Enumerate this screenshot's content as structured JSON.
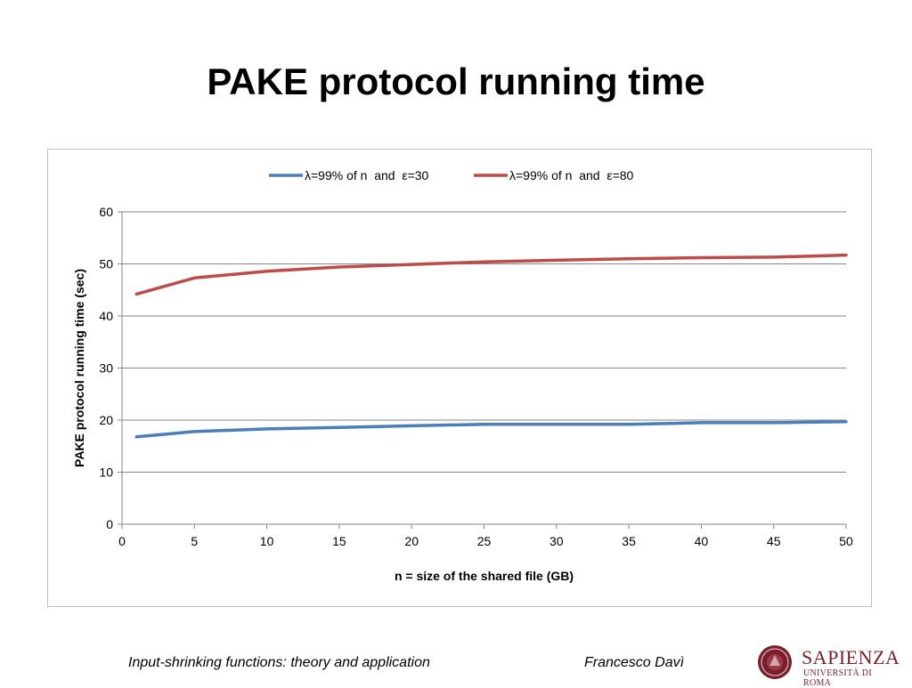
{
  "slide": {
    "title": "PAKE protocol running time",
    "footer_left": "Input-shrinking functions: theory and application",
    "footer_right": "Francesco Davì",
    "logo_name": "SAPIENZA",
    "logo_sub": "UNIVERSITÀ DI ROMA",
    "logo_color": "#7a1f2b"
  },
  "chart_data": {
    "type": "line",
    "title": "",
    "xlabel": "n = size of the shared file (GB)",
    "ylabel": "PAKE protocol running time (sec)",
    "xlim": [
      0,
      50
    ],
    "ylim": [
      0,
      60
    ],
    "xticks": [
      0,
      5,
      10,
      15,
      20,
      25,
      30,
      35,
      40,
      45,
      50
    ],
    "yticks": [
      0,
      10,
      20,
      30,
      40,
      50,
      60
    ],
    "grid": "horizontal",
    "legend_position": "top",
    "series": [
      {
        "name": "λ=99% of n  and  ε=30",
        "color": "#4a7ebb",
        "x": [
          1,
          5,
          10,
          15,
          20,
          25,
          30,
          35,
          40,
          45,
          50
        ],
        "y": [
          16.8,
          17.8,
          18.3,
          18.6,
          18.9,
          19.2,
          19.2,
          19.2,
          19.5,
          19.5,
          19.7
        ]
      },
      {
        "name": "λ=99% of n  and  ε=80",
        "color": "#be4b48",
        "x": [
          1,
          5,
          10,
          15,
          20,
          25,
          30,
          35,
          40,
          45,
          50
        ],
        "y": [
          44.2,
          47.3,
          48.6,
          49.4,
          49.9,
          50.4,
          50.7,
          51.0,
          51.2,
          51.3,
          51.7
        ]
      }
    ]
  }
}
